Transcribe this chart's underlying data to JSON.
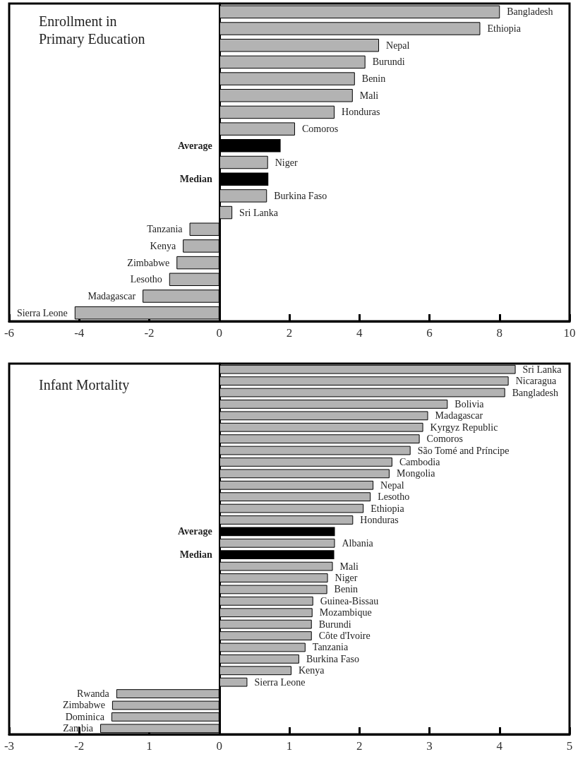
{
  "chart_data": [
    {
      "type": "bar",
      "orientation": "horizontal",
      "title": "Enrollment in\nPrimary Education",
      "categories": [
        "Bangladesh",
        "Ethiopia",
        "Nepal",
        "Burundi",
        "Benin",
        "Mali",
        "Honduras",
        "Comoros",
        "Average",
        "Niger",
        "Median",
        "Burkina Faso",
        "Sri Lanka",
        "Tanzania",
        "Kenya",
        "Zimbabwe",
        "Lesotho",
        "Madagascar",
        "Sierra Leone"
      ],
      "values": [
        8.01,
        7.45,
        4.56,
        4.17,
        3.87,
        3.81,
        3.29,
        2.16,
        1.75,
        1.39,
        1.4,
        1.36,
        0.37,
        -0.85,
        -1.04,
        -1.22,
        -1.43,
        -2.19,
        -4.13
      ],
      "colors": [
        "#b3b3b3",
        "#b3b3b3",
        "#b3b3b3",
        "#b3b3b3",
        "#b3b3b3",
        "#b3b3b3",
        "#b3b3b3",
        "#b3b3b3",
        "#000000",
        "#b3b3b3",
        "#000000",
        "#b3b3b3",
        "#b3b3b3",
        "#b3b3b3",
        "#b3b3b3",
        "#b3b3b3",
        "#b3b3b3",
        "#b3b3b3",
        "#b3b3b3"
      ],
      "xlim": [
        -6,
        10
      ],
      "xticks": [
        -6,
        -4,
        -2,
        0,
        2,
        4,
        6,
        8,
        10
      ]
    },
    {
      "type": "bar",
      "orientation": "horizontal",
      "title": "Infant Mortality",
      "categories": [
        "Sri Lanka",
        "Nicaragua",
        "Bangladesh",
        "Bolivia",
        "Madagascar",
        "Kyrgyz Republic",
        "Comoros",
        "São Tomé and Príncipe",
        "Cambodia",
        "Mongolia",
        "Nepal",
        "Lesotho",
        "Ethiopia",
        "Honduras",
        "Average",
        "Albania",
        "Median",
        "Mali",
        "Niger",
        "Benin",
        "Guinea-Bissau",
        "Mozambique",
        "Burundi",
        "Côte d'Ivoire",
        "Tanzania",
        "Burkina Faso",
        "Kenya",
        "Sierra Leone",
        "Rwanda",
        "Zimbabwe",
        "Dominica",
        "Zambia"
      ],
      "values": [
        4.23,
        4.13,
        4.08,
        3.26,
        2.98,
        2.91,
        2.86,
        2.73,
        2.47,
        2.43,
        2.2,
        2.16,
        2.06,
        1.91,
        1.65,
        1.65,
        1.64,
        1.62,
        1.55,
        1.54,
        1.34,
        1.33,
        1.32,
        1.32,
        1.23,
        1.14,
        1.03,
        0.4,
        -1.47,
        -1.53,
        -1.54,
        -1.7
      ],
      "colors": [
        "#b3b3b3",
        "#b3b3b3",
        "#b3b3b3",
        "#b3b3b3",
        "#b3b3b3",
        "#b3b3b3",
        "#b3b3b3",
        "#b3b3b3",
        "#b3b3b3",
        "#b3b3b3",
        "#b3b3b3",
        "#b3b3b3",
        "#b3b3b3",
        "#b3b3b3",
        "#000000",
        "#b3b3b3",
        "#000000",
        "#b3b3b3",
        "#b3b3b3",
        "#b3b3b3",
        "#b3b3b3",
        "#b3b3b3",
        "#b3b3b3",
        "#b3b3b3",
        "#b3b3b3",
        "#b3b3b3",
        "#b3b3b3",
        "#b3b3b3",
        "#b3b3b3",
        "#b3b3b3",
        "#b3b3b3",
        "#b3b3b3"
      ],
      "xlim": [
        -3,
        5
      ],
      "xticks": [
        -3,
        -2,
        {
          "value": -1,
          "label": "1"
        },
        0,
        1,
        2,
        3,
        4,
        5
      ]
    }
  ]
}
